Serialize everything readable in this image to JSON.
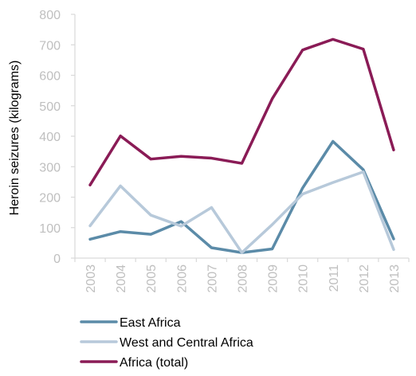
{
  "chart_data": {
    "type": "line",
    "title": "",
    "xlabel": "",
    "ylabel": "Heroin seizures (kilograms)",
    "ylim": [
      0,
      800
    ],
    "yticks": [
      0,
      100,
      200,
      300,
      400,
      500,
      600,
      700,
      800
    ],
    "x": [
      "2003",
      "2004",
      "2005",
      "2006",
      "2007",
      "2008",
      "2009",
      "2010",
      "2011",
      "2012",
      "2013"
    ],
    "grid": false,
    "legend_position": "bottom-left",
    "series": [
      {
        "name": "East Africa",
        "color": "#5b8ba8",
        "values": [
          62,
          87,
          78,
          120,
          34,
          18,
          30,
          230,
          383,
          290,
          63
        ]
      },
      {
        "name": "West and Central Africa",
        "color": "#b7c9da",
        "values": [
          106,
          237,
          141,
          105,
          166,
          18,
          110,
          210,
          248,
          283,
          28
        ]
      },
      {
        "name": "Africa (total)",
        "color": "#8a1b56",
        "values": [
          240,
          401,
          325,
          334,
          328,
          311,
          523,
          683,
          718,
          686,
          355
        ]
      }
    ]
  }
}
